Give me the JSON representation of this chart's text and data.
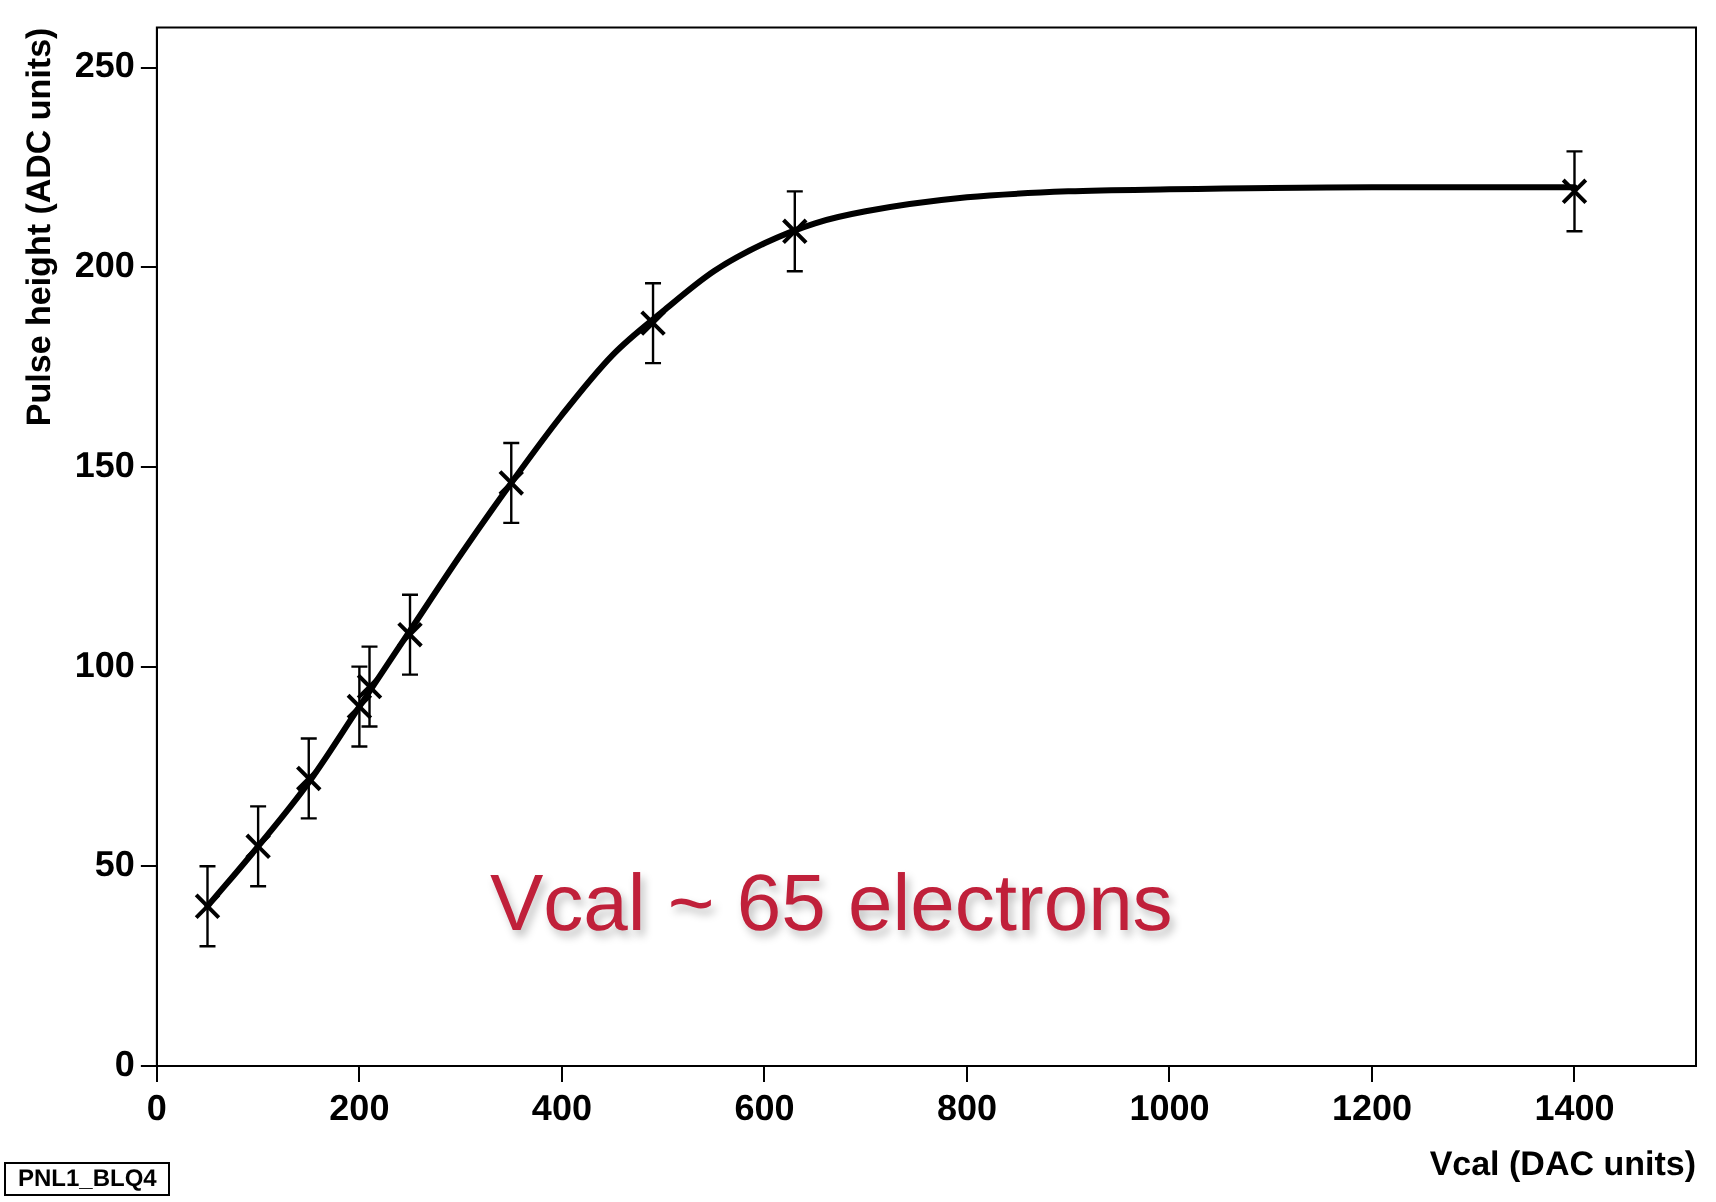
{
  "chart_data": {
    "type": "scatter",
    "xlabel": "Vcal (DAC units)",
    "ylabel": "Pulse height (ADC units)",
    "xlim": [
      0,
      1520
    ],
    "xticks": [
      0,
      200,
      400,
      600,
      800,
      1000,
      1200,
      1400
    ],
    "ylim": [
      0,
      260
    ],
    "yticks": [
      0,
      50,
      100,
      150,
      200,
      250
    ],
    "grid": false,
    "marker": "cross",
    "series": [
      {
        "color": "#000000",
        "x": [
          50,
          100,
          150,
          200,
          210,
          250,
          350,
          490,
          630,
          1400
        ],
        "values": [
          40,
          55,
          72,
          90,
          95,
          108,
          146,
          186,
          209,
          219
        ],
        "errors": [
          10,
          10,
          10,
          10,
          10,
          10,
          10,
          10,
          10,
          10
        ]
      },
      {
        "type": "line",
        "color": "#000000",
        "marker": "none",
        "x": [
          50,
          100,
          150,
          200,
          250,
          300,
          350,
          400,
          450,
          500,
          550,
          600,
          650,
          700,
          800,
          900,
          1000,
          1200,
          1400
        ],
        "values": [
          40,
          55,
          71,
          90,
          109,
          128,
          146,
          163,
          178,
          189,
          199,
          206,
          211,
          214,
          217.5,
          219,
          219.5,
          220,
          220
        ]
      }
    ],
    "annotations": [
      "Vcal ~ 65 electrons",
      "PNL1_BLQ4"
    ]
  }
}
